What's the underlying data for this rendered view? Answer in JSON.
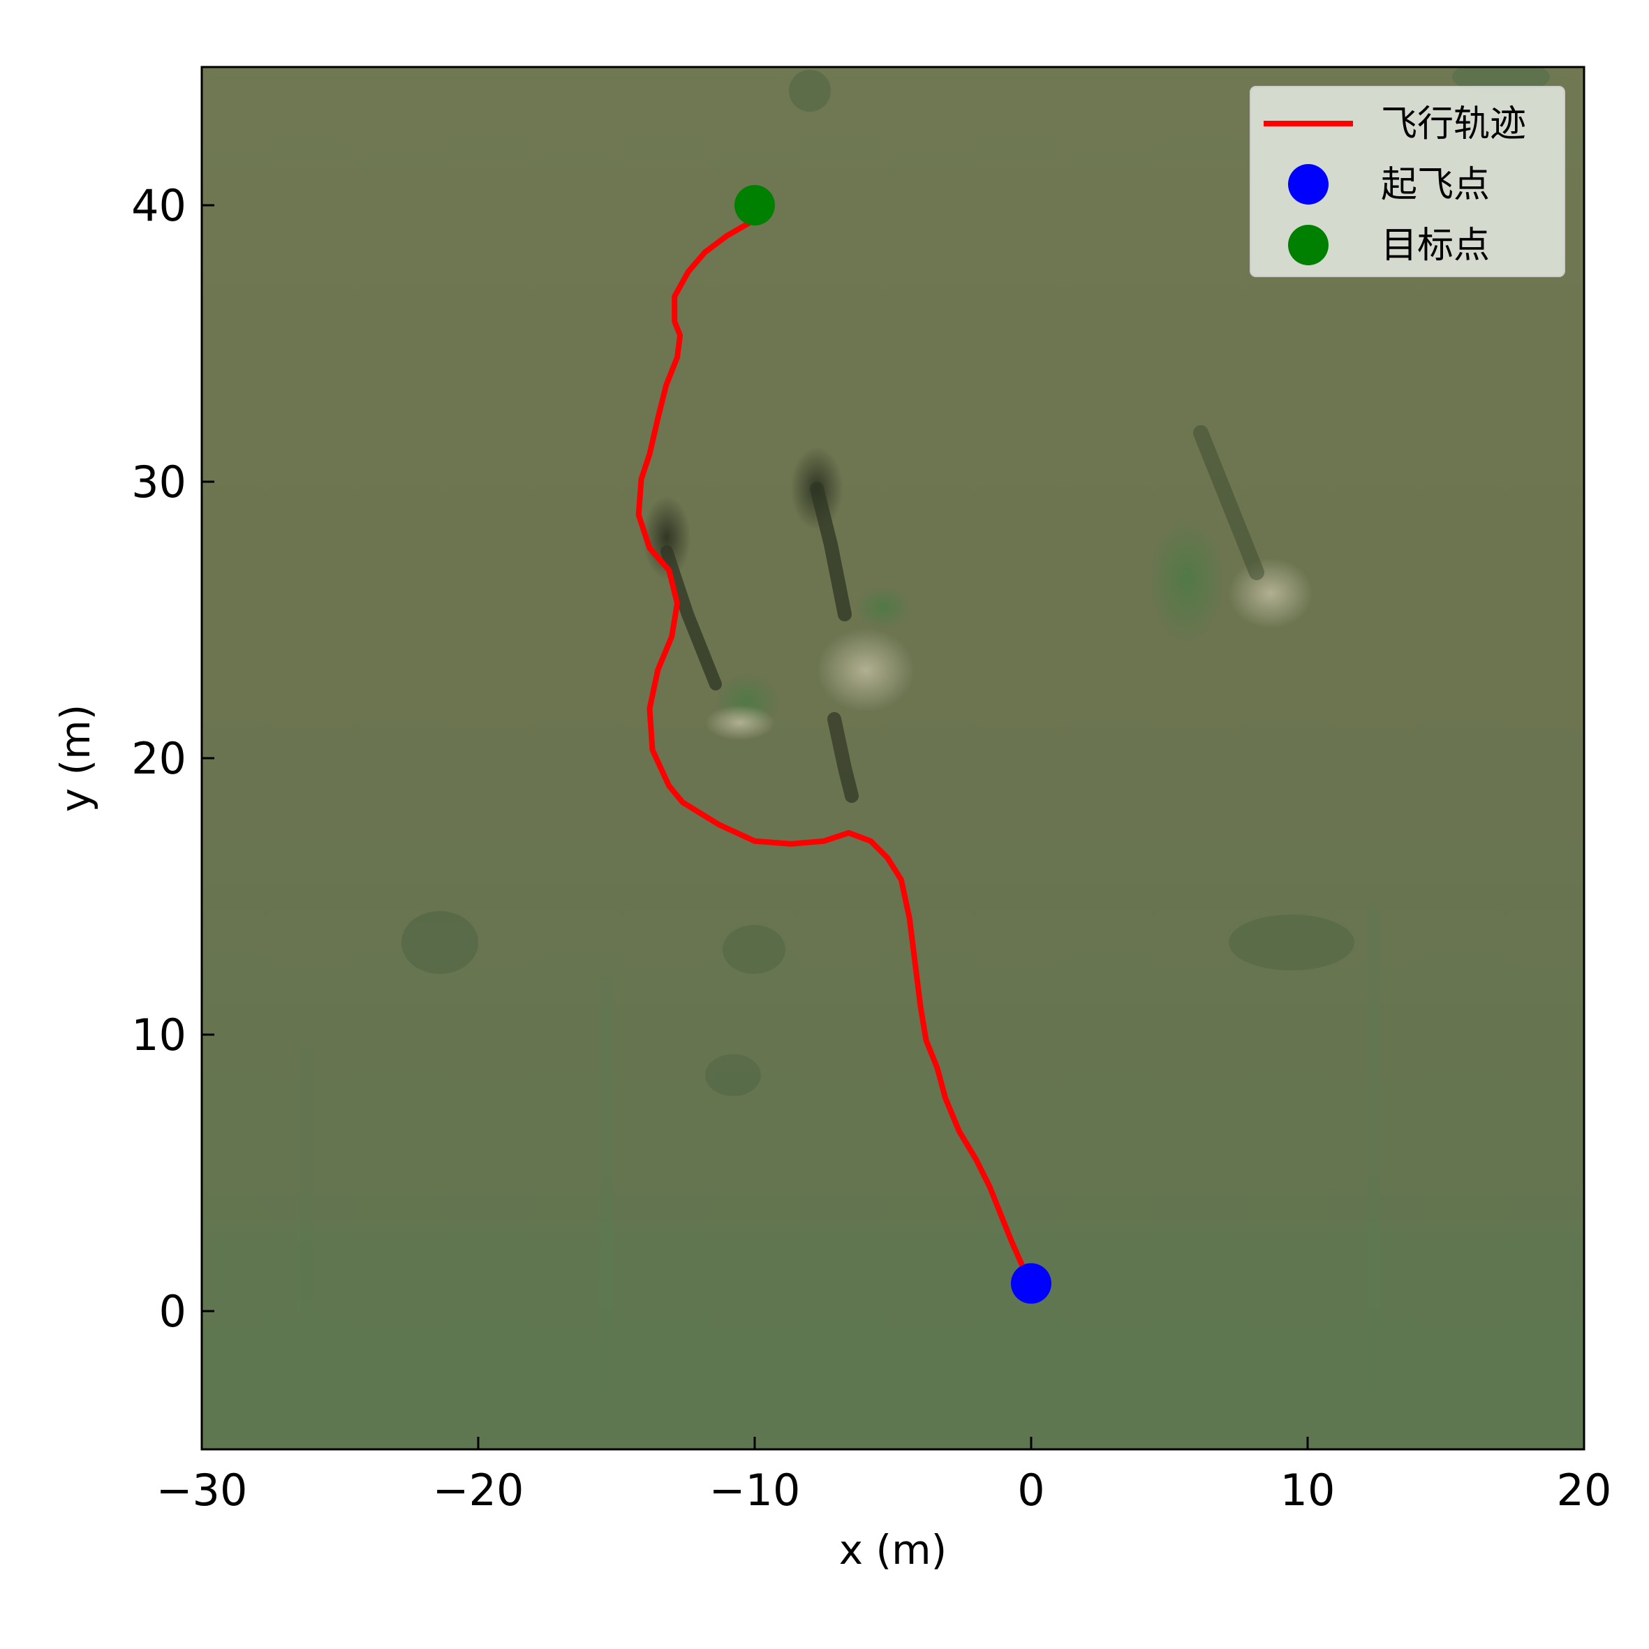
{
  "chart_data": {
    "type": "line",
    "xlabel": "x (m)",
    "ylabel": "y (m)",
    "xlim": [
      -30,
      20
    ],
    "ylim": [
      -5,
      45
    ],
    "x_ticks": [
      -30,
      -20,
      -10,
      0,
      10,
      20
    ],
    "x_tick_labels": [
      "−30",
      "−20",
      "−10",
      "0",
      "10",
      "20"
    ],
    "y_ticks": [
      0,
      10,
      20,
      30,
      40
    ],
    "y_tick_labels": [
      "0",
      "10",
      "20",
      "30",
      "40"
    ],
    "grid": false,
    "background": "satellite imagery of grassland",
    "legend": {
      "placement": "top-right",
      "entries": [
        {
          "label": "飞行轨迹",
          "marker": "line",
          "color": "#ff0000"
        },
        {
          "label": "起飞点",
          "marker": "circle",
          "color": "#0000ff"
        },
        {
          "label": "目标点",
          "marker": "circle",
          "color": "#008000"
        }
      ]
    },
    "series": [
      {
        "name": "飞行轨迹",
        "color": "#ff0000",
        "points": [
          [
            -0.3,
            1.6
          ],
          [
            -0.7,
            2.5
          ],
          [
            -1.1,
            3.5
          ],
          [
            -1.5,
            4.5
          ],
          [
            -2.0,
            5.5
          ],
          [
            -2.6,
            6.5
          ],
          [
            -3.1,
            7.7
          ],
          [
            -3.4,
            8.8
          ],
          [
            -3.8,
            9.8
          ],
          [
            -4.0,
            11.0
          ],
          [
            -4.2,
            12.6
          ],
          [
            -4.4,
            14.2
          ],
          [
            -4.7,
            15.6
          ],
          [
            -5.2,
            16.4
          ],
          [
            -5.8,
            17.0
          ],
          [
            -6.6,
            17.3
          ],
          [
            -7.5,
            17.0
          ],
          [
            -8.7,
            16.9
          ],
          [
            -10.0,
            17.0
          ],
          [
            -11.3,
            17.6
          ],
          [
            -12.6,
            18.4
          ],
          [
            -13.1,
            19.0
          ],
          [
            -13.7,
            20.3
          ],
          [
            -13.8,
            21.8
          ],
          [
            -13.5,
            23.2
          ],
          [
            -13.0,
            24.4
          ],
          [
            -12.8,
            25.6
          ],
          [
            -13.1,
            26.8
          ],
          [
            -13.8,
            27.6
          ],
          [
            -14.2,
            28.8
          ],
          [
            -14.1,
            30.1
          ],
          [
            -13.8,
            31.0
          ],
          [
            -13.5,
            32.3
          ],
          [
            -13.2,
            33.5
          ],
          [
            -12.8,
            34.5
          ],
          [
            -12.7,
            35.3
          ],
          [
            -12.9,
            35.8
          ],
          [
            -12.9,
            36.7
          ],
          [
            -12.4,
            37.6
          ],
          [
            -11.8,
            38.3
          ],
          [
            -11.0,
            38.9
          ],
          [
            -10.3,
            39.3
          ],
          [
            -9.8,
            39.6
          ],
          [
            -9.5,
            39.8
          ]
        ]
      }
    ],
    "markers": [
      {
        "name": "起飞点",
        "x": 0.0,
        "y": 1.0,
        "color": "#0000ff"
      },
      {
        "name": "目标点",
        "x": -10.0,
        "y": 40.0,
        "color": "#008000"
      }
    ]
  }
}
